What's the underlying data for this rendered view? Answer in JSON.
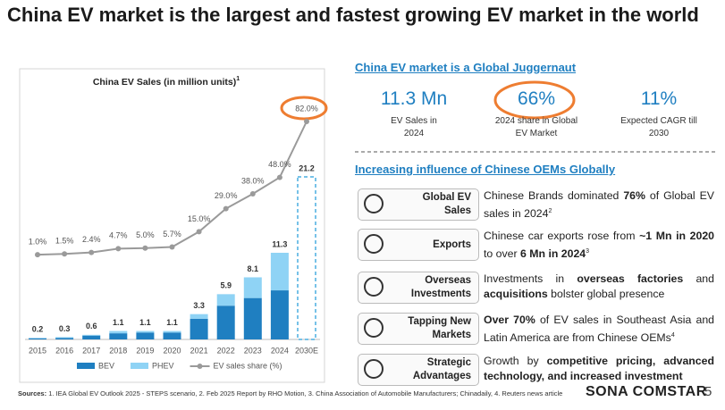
{
  "title": "China EV market is the largest and fastest growing EV market in the world",
  "chart_data": {
    "type": "bar",
    "title": "China EV Sales (in million units)",
    "title_note": "1",
    "categories": [
      "2015",
      "2016",
      "2017",
      "2018",
      "2019",
      "2020",
      "2021",
      "2022",
      "2023",
      "2024",
      "2030E"
    ],
    "series": [
      {
        "name": "BEV",
        "color": "#1f7fc1",
        "values": [
          0.15,
          0.2,
          0.5,
          0.8,
          0.9,
          0.9,
          2.7,
          4.4,
          5.4,
          6.4,
          null
        ]
      },
      {
        "name": "PHEV",
        "color": "#8fd3f5",
        "values": [
          0.05,
          0.1,
          0.1,
          0.3,
          0.2,
          0.2,
          0.6,
          1.5,
          2.7,
          4.9,
          null
        ]
      },
      {
        "name": "EV sales share (%)",
        "type": "line",
        "color": "#9a9a9a",
        "values": [
          1.0,
          1.5,
          2.4,
          4.7,
          5.0,
          5.7,
          15.0,
          29.0,
          38.0,
          48.0,
          82.0
        ],
        "value_labels": [
          "1.0%",
          "1.5%",
          "2.4%",
          "4.7%",
          "5.0%",
          "5.7%",
          "15.0%",
          "29.0%",
          "38.0%",
          "48.0%",
          "82.0%"
        ]
      }
    ],
    "totals": [
      0.2,
      0.3,
      0.6,
      1.1,
      1.1,
      1.1,
      3.3,
      5.9,
      8.1,
      11.3,
      21.2
    ]
  },
  "section1_title": "China EV market is a Global Juggernaut",
  "highlights": [
    {
      "value": "11.3 Mn",
      "label": "EV Sales in 2024"
    },
    {
      "value": "66%",
      "label": "2024 share in Global EV Market"
    },
    {
      "value": "11%",
      "label": "Expected CAGR till 2030"
    }
  ],
  "section2_title": "Increasing influence of Chinese OEMs Globally",
  "items": [
    {
      "label": "Global EV Sales",
      "segments": [
        {
          "text": "Chinese Brands dominated "
        },
        {
          "text": "76%",
          "bold": true
        },
        {
          "text": " of Global EV sales in 2024"
        },
        {
          "text": "2",
          "sup": true
        }
      ]
    },
    {
      "label": "Exports",
      "segments": [
        {
          "text": "Chinese car exports rose from "
        },
        {
          "text": "~1 Mn in 2020",
          "bold": true
        },
        {
          "text": " to over "
        },
        {
          "text": "6 Mn in 2024",
          "bold": true
        },
        {
          "text": "3",
          "sup": true
        }
      ]
    },
    {
      "label": "Overseas Investments",
      "segments": [
        {
          "text": "Investments in "
        },
        {
          "text": "overseas factories",
          "bold": true
        },
        {
          "text": " and "
        },
        {
          "text": "acquisitions",
          "bold": true
        },
        {
          "text": " bolster global presence"
        }
      ]
    },
    {
      "label": "Tapping New Markets",
      "segments": [
        {
          "text": "Over 70%",
          "bold": true
        },
        {
          "text": " of EV sales in Southeast Asia and Latin America are from Chinese OEMs"
        },
        {
          "text": "4",
          "sup": true
        }
      ]
    },
    {
      "label": "Strategic Advantages",
      "segments": [
        {
          "text": "Growth by "
        },
        {
          "text": "competitive pricing, advanced technology, and increased investment",
          "bold": true
        }
      ]
    }
  ],
  "sources_label": "Sources:",
  "sources": "1. IEA Global EV Outlook 2025 - STEPS scenario, 2. Feb 2025 Report by RHO Motion, 3. China Association of Automobile Manufacturers; Chinadaily, 4. Reuters news article",
  "logo": "SONA COMSTAR",
  "page_number": "5"
}
